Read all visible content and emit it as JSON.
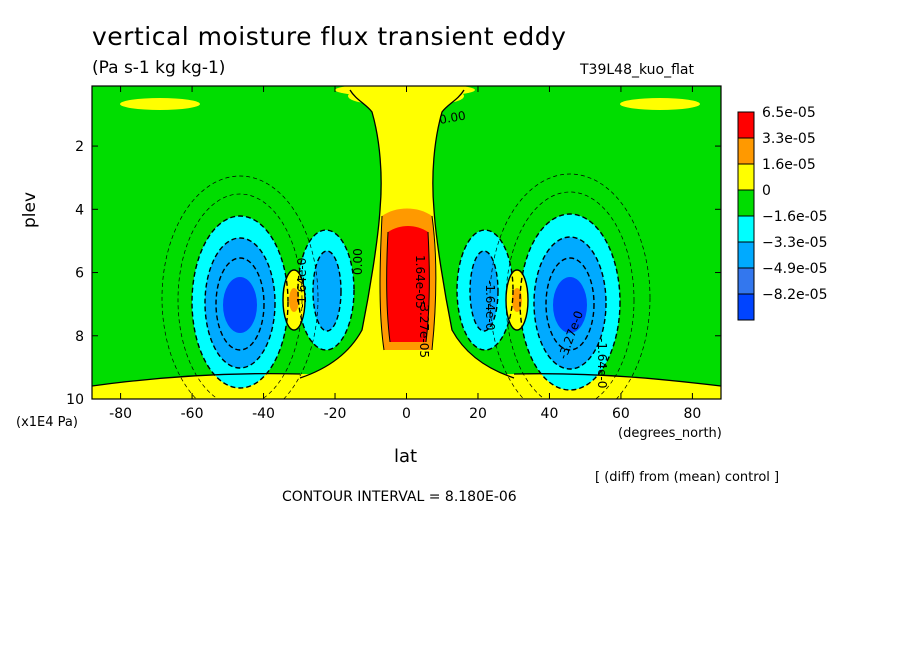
{
  "chart_data": {
    "type": "heatmap",
    "title": "vertical moisture flux transient eddy",
    "units": "(Pa s-1 kg kg-1)",
    "run_label": "T39L48_kuo_flat",
    "xlabel": "lat",
    "ylabel": "plev",
    "x_units": "(degrees_north)",
    "y_units": "(x1E4 Pa)",
    "xlim": [
      -88,
      88
    ],
    "ylim": [
      0.1,
      10
    ],
    "y_inverted": true,
    "x_ticks": [
      "-80",
      "-60",
      "-40",
      "-20",
      "0",
      "20",
      "40",
      "60",
      "80"
    ],
    "y_ticks": [
      "2",
      "4",
      "6",
      "8",
      "10"
    ],
    "colorbar": {
      "labels": [
        "6.5e-05",
        "3.3e-05",
        "1.6e-05",
        "0",
        "−1.6e-05",
        "−3.3e-05",
        "−4.9e-05",
        "−8.2e-05"
      ],
      "colors": [
        "#ff0000",
        "#ff9900",
        "#ffff00",
        "#00dd00",
        "#00ffff",
        "#00aaff",
        "#3377ee",
        "#0044ff"
      ]
    },
    "contour_labels": [
      "0.00",
      "0.00",
      "-1.64e-0",
      "-1.64e-0",
      "-1.64e-0",
      "-3.27e-0",
      "1.64e-05",
      "-3.27e-05"
    ],
    "features": [
      {
        "label": "tropical positive column",
        "lat": 0,
        "plev": 6.5,
        "sign": "positive"
      },
      {
        "label": "SH negative core",
        "lat": -47,
        "plev": 7.2,
        "sign": "negative"
      },
      {
        "label": "NH negative core",
        "lat": 46,
        "plev": 7.2,
        "sign": "negative"
      },
      {
        "label": "SH inner negative",
        "lat": -21,
        "plev": 7.0,
        "sign": "negative"
      },
      {
        "label": "NH inner negative",
        "lat": 21,
        "plev": 7.0,
        "sign": "negative"
      },
      {
        "label": "SH small positive",
        "lat": -31,
        "plev": 7.0,
        "sign": "positive"
      },
      {
        "label": "NH small positive",
        "lat": 31,
        "plev": 7.0,
        "sign": "positive"
      }
    ],
    "footnote": "[ (diff) from (mean) control ]",
    "contour_interval": "CONTOUR INTERVAL = 8.180E-06",
    "grid": false,
    "legend_position": "right"
  }
}
